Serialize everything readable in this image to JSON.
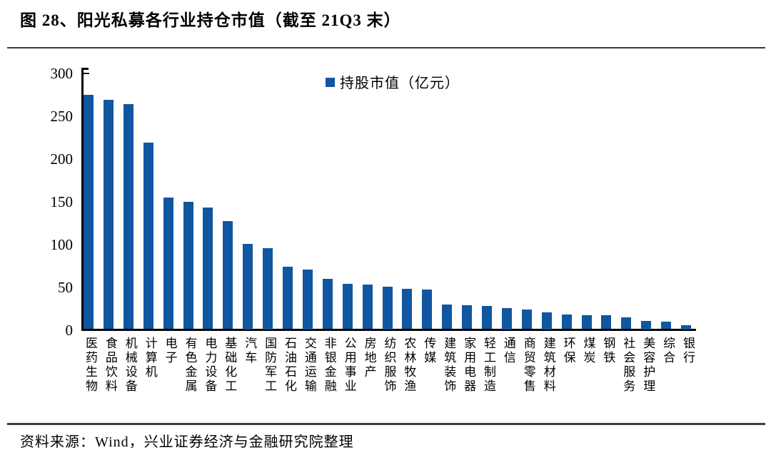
{
  "title": "图 28、阳光私募各行业持仓市值（截至 21Q3 末）",
  "footer": {
    "source_text": "资料来源：Wind，兴业证券经济与金融研究院整理"
  },
  "colors": {
    "bar": "#1056A0",
    "axis": "#000000",
    "divider": "#3c3c3c"
  },
  "chart_data": {
    "type": "bar",
    "title": "图 28、阳光私募各行业持仓市值（截至 21Q3 末）",
    "legend": [
      "持股市值（亿元）"
    ],
    "legend_position": "top-center",
    "ylabel": "",
    "xlabel": "",
    "unit": "亿元",
    "ylim": [
      0,
      300
    ],
    "yticks": [
      0,
      50,
      100,
      150,
      200,
      250,
      300
    ],
    "grid": false,
    "bar_color": "#1056A0",
    "categories": [
      "医药生物",
      "食品饮料",
      "机械设备",
      "计算机",
      "电子",
      "有色金属",
      "电力设备",
      "基础化工",
      "汽车",
      "国防军工",
      "石油石化",
      "交通运输",
      "非银金融",
      "公用事业",
      "房地产",
      "纺织服饰",
      "农林牧渔",
      "传媒",
      "建筑装饰",
      "家用电器",
      "轻工制造",
      "通信",
      "商贸零售",
      "建筑材料",
      "环保",
      "煤炭",
      "钢铁",
      "社会服务",
      "美容护理",
      "综合",
      "银行"
    ],
    "values": [
      274,
      268,
      263,
      218,
      154,
      149,
      142,
      126,
      100,
      95,
      73,
      70,
      59,
      53,
      52,
      50,
      47,
      46,
      29,
      28,
      27,
      25,
      23,
      20,
      17,
      16,
      16,
      14,
      10,
      9,
      5
    ]
  }
}
